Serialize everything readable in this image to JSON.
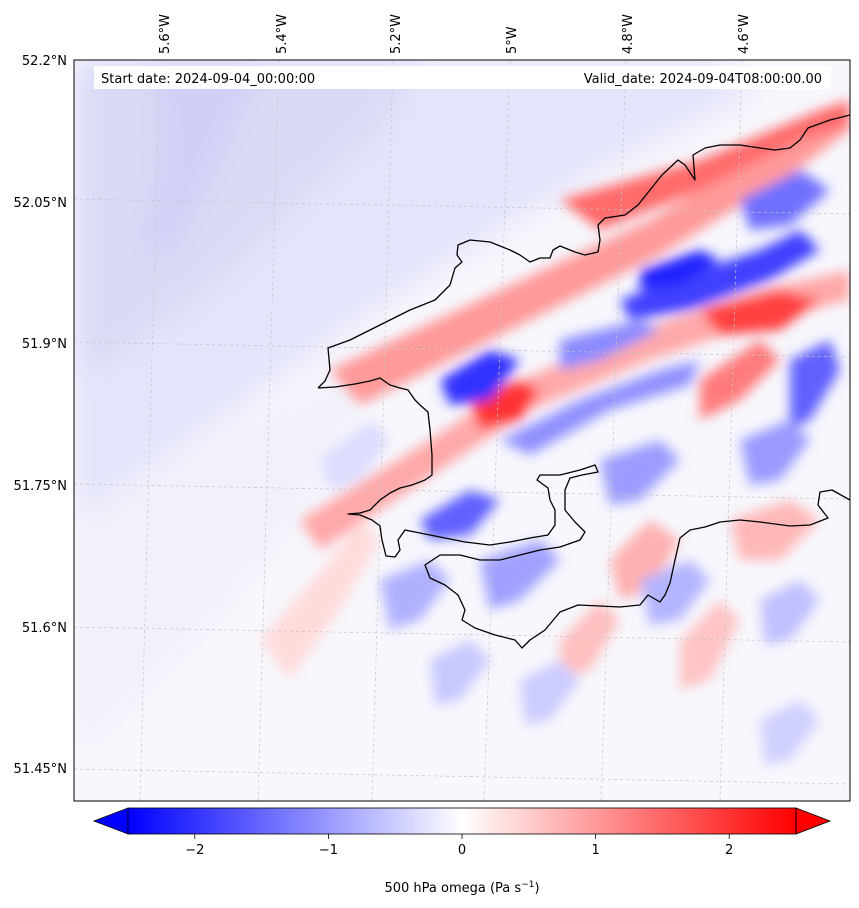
{
  "map": {
    "start_label": "Start date: 2024-09-04_00:00:00",
    "valid_label": "Valid_date: 2024-09-04T08:00:00.00",
    "lon_ticks": [
      "5.6°W",
      "5.4°W",
      "5.2°W",
      "5°W",
      "4.8°W",
      "4.6°W"
    ],
    "lat_ticks": [
      "52.2°N",
      "52.05°N",
      "51.9°N",
      "51.75°N",
      "51.6°N",
      "51.45°N"
    ],
    "field": "500 hPa omega",
    "units": "Pa s",
    "units_exponent": "−1"
  },
  "colorbar": {
    "ticks": [
      "−2",
      "−1",
      "0",
      "1",
      "2"
    ],
    "tick_values": [
      -2,
      -1,
      0,
      1,
      2
    ],
    "min": -2.5,
    "max": 2.5,
    "cmap": "bwr",
    "low_color": "#0000ff",
    "mid_color": "#ffffff",
    "high_color": "#ff0000",
    "extend": "both"
  },
  "colors": {
    "coastline": "#000000",
    "gridline": "#b0b0b0",
    "positive": "#ff0000",
    "negative": "#0000ff"
  }
}
